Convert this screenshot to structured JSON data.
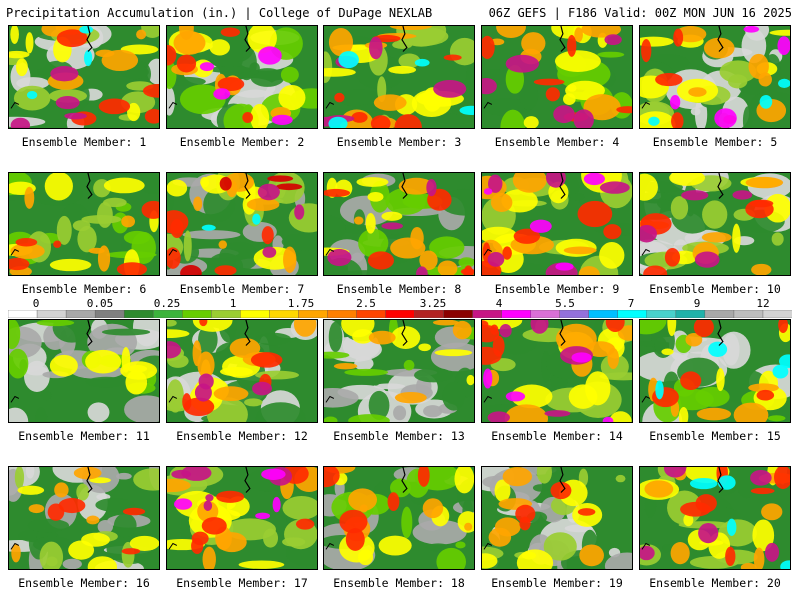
{
  "header": {
    "left": "Precipitation Accumulation (in.) | College of DuPage NEXLAB",
    "right": "06Z GEFS | F186 Valid: 00Z MON JUN 16 2025"
  },
  "colorbar": {
    "labels": [
      "0",
      "0.05",
      "0.25",
      "1",
      "1.75",
      "2.5",
      "3.25",
      "4",
      "5.5",
      "7",
      "9",
      "12"
    ],
    "colors": [
      "#ffffff",
      "#d3d3d3",
      "#a9a9a9",
      "#808080",
      "#2e8b2e",
      "#3cb43c",
      "#66cd00",
      "#9acd32",
      "#ffff00",
      "#ffd700",
      "#ffa500",
      "#ff7f00",
      "#ff4500",
      "#ff0000",
      "#b22222",
      "#8b0000",
      "#c71585",
      "#ff00ff",
      "#da70d6",
      "#9370db",
      "#00bfff",
      "#00ffff",
      "#48d1cc",
      "#20b2aa",
      "#a9a9a9",
      "#bebebe",
      "#d3d3d3"
    ]
  },
  "members": [
    {
      "label": "Ensemble Member: 1"
    },
    {
      "label": "Ensemble Member: 2"
    },
    {
      "label": "Ensemble Member: 3"
    },
    {
      "label": "Ensemble Member: 4"
    },
    {
      "label": "Ensemble Member: 5"
    },
    {
      "label": "Ensemble Member: 6"
    },
    {
      "label": "Ensemble Member: 7"
    },
    {
      "label": "Ensemble Member: 8"
    },
    {
      "label": "Ensemble Member: 9"
    },
    {
      "label": "Ensemble Member: 10"
    },
    {
      "label": "Ensemble Member: 11"
    },
    {
      "label": "Ensemble Member: 12"
    },
    {
      "label": "Ensemble Member: 13"
    },
    {
      "label": "Ensemble Member: 14"
    },
    {
      "label": "Ensemble Member: 15"
    },
    {
      "label": "Ensemble Member: 16"
    },
    {
      "label": "Ensemble Member: 17"
    },
    {
      "label": "Ensemble Member: 18"
    },
    {
      "label": "Ensemble Member: 19"
    },
    {
      "label": "Ensemble Member: 20"
    }
  ]
}
